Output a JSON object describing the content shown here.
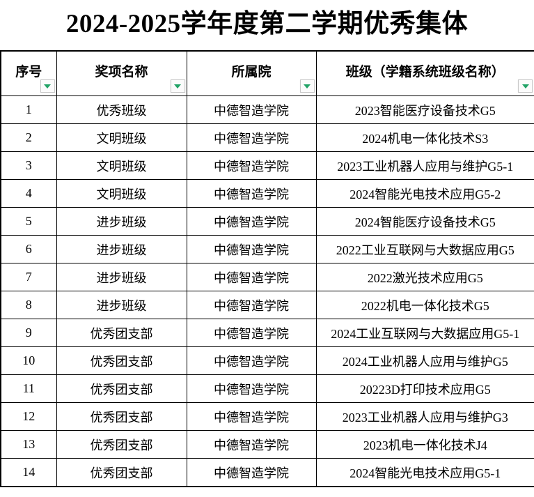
{
  "title": "2024-2025学年度第二学期优秀集体",
  "accent": {
    "filter_arrow_green": "#21a366",
    "grid_border": "#000000"
  },
  "table": {
    "headers": [
      "序号",
      "奖项名称",
      "所属院",
      "班级（学籍系统班级名称）"
    ],
    "rows": [
      {
        "no": "1",
        "award": "优秀班级",
        "college": "中德智造学院",
        "class_name": "2023智能医疗设备技术G5"
      },
      {
        "no": "2",
        "award": "文明班级",
        "college": "中德智造学院",
        "class_name": "2024机电一体化技术S3"
      },
      {
        "no": "3",
        "award": "文明班级",
        "college": "中德智造学院",
        "class_name": "2023工业机器人应用与维护G5-1"
      },
      {
        "no": "4",
        "award": "文明班级",
        "college": "中德智造学院",
        "class_name": "2024智能光电技术应用G5-2"
      },
      {
        "no": "5",
        "award": "进步班级",
        "college": "中德智造学院",
        "class_name": "2024智能医疗设备技术G5"
      },
      {
        "no": "6",
        "award": "进步班级",
        "college": "中德智造学院",
        "class_name": "2022工业互联网与大数据应用G5"
      },
      {
        "no": "7",
        "award": "进步班级",
        "college": "中德智造学院",
        "class_name": "2022激光技术应用G5"
      },
      {
        "no": "8",
        "award": "进步班级",
        "college": "中德智造学院",
        "class_name": "2022机电一体化技术G5"
      },
      {
        "no": "9",
        "award": "优秀团支部",
        "college": "中德智造学院",
        "class_name": "2024工业互联网与大数据应用G5-1"
      },
      {
        "no": "10",
        "award": "优秀团支部",
        "college": "中德智造学院",
        "class_name": "2024工业机器人应用与维护G5"
      },
      {
        "no": "11",
        "award": "优秀团支部",
        "college": "中德智造学院",
        "class_name": "20223D打印技术应用G5"
      },
      {
        "no": "12",
        "award": "优秀团支部",
        "college": "中德智造学院",
        "class_name": "2023工业机器人应用与维护G3"
      },
      {
        "no": "13",
        "award": "优秀团支部",
        "college": "中德智造学院",
        "class_name": "2023机电一体化技术J4"
      },
      {
        "no": "14",
        "award": "优秀团支部",
        "college": "中德智造学院",
        "class_name": "2024智能光电技术应用G5-1"
      }
    ]
  }
}
